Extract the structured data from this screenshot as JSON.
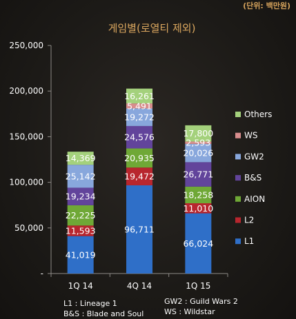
{
  "unit_note": "(단위: 백만원)",
  "chart_data": {
    "type": "bar",
    "stacked": true,
    "title": "게임별(로열티 제외)",
    "categories": [
      "1Q 14",
      "4Q 14",
      "1Q 15"
    ],
    "ylim": [
      0,
      250000
    ],
    "yticks": [
      "-",
      "50,000",
      "100,000",
      "150,000",
      "200,000",
      "250,000"
    ],
    "ytick_values": [
      0,
      50000,
      100000,
      150000,
      200000,
      250000
    ],
    "series": [
      {
        "name": "L1",
        "color": "#2f6fc8",
        "values": [
          41019,
          96711,
          66024
        ],
        "labels": [
          "41,019",
          "96,711",
          "66,024"
        ]
      },
      {
        "name": "L2",
        "color": "#b8262e",
        "values": [
          11593,
          19472,
          11010
        ],
        "labels": [
          "11,593",
          "19,472",
          "11,010"
        ]
      },
      {
        "name": "AION",
        "color": "#6fa836",
        "values": [
          22225,
          20935,
          18258
        ],
        "labels": [
          "22,225",
          "20,935",
          "18,258"
        ]
      },
      {
        "name": "B&S",
        "color": "#62449b",
        "values": [
          19234,
          24576,
          26771
        ],
        "labels": [
          "19,234",
          "24,576",
          "26,771"
        ]
      },
      {
        "name": "GW2",
        "color": "#88a7dc",
        "values": [
          25142,
          19272,
          20026
        ],
        "labels": [
          "25,142",
          "19,272",
          "20,026"
        ]
      },
      {
        "name": "WS",
        "color": "#d88d8d",
        "values": [
          0,
          5491,
          2593
        ],
        "labels": [
          "",
          "5,491",
          "2,593"
        ]
      },
      {
        "name": "Others",
        "color": "#a4d17c",
        "values": [
          14369,
          16261,
          17800
        ],
        "labels": [
          "14,369",
          "16,261",
          "17,800"
        ]
      }
    ],
    "legend_order": [
      "Others",
      "WS",
      "GW2",
      "B&S",
      "AION",
      "L2",
      "L1"
    ],
    "legend_position": "right",
    "grid": false
  },
  "footnotes": {
    "left_line1": "L1 : Lineage 1",
    "left_line2": "B&S : Blade and Soul",
    "right_line1": "GW2 : Guild Wars 2",
    "right_line2": "WS : Wildstar"
  }
}
